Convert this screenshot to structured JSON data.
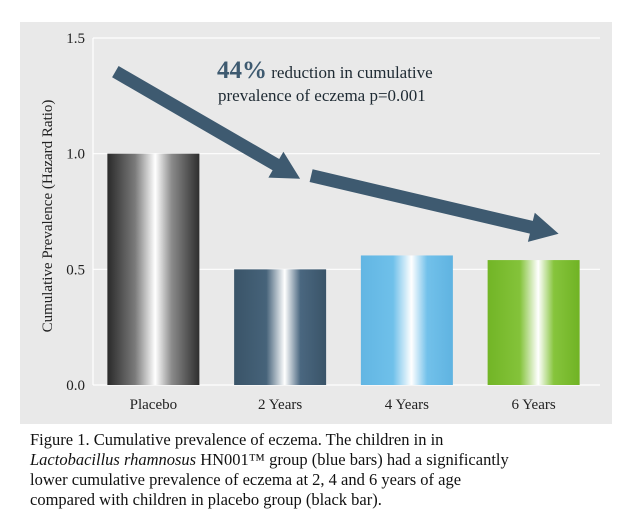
{
  "chart_data": {
    "type": "bar",
    "categories": [
      "Placebo",
      "2 Years",
      "4 Years",
      "6 Years"
    ],
    "values": [
      1.0,
      0.5,
      0.56,
      0.54
    ],
    "ylabel": "Cumulative Prevalence (Hazard Ratio)",
    "xlabel": "",
    "ylim": [
      0,
      1.5
    ],
    "yticks": [
      {
        "value": 0.0,
        "label": "0.0"
      },
      {
        "value": 0.5,
        "label": "0.5"
      },
      {
        "value": 1.0,
        "label": "1.0"
      },
      {
        "value": 1.5,
        "label": "1.5"
      }
    ],
    "grid": true,
    "bar_colors": [
      "#5e5e5e",
      "#3e5a70",
      "#6bbce6",
      "#7cbd2e"
    ],
    "annotation": {
      "highlight": "44%",
      "line1_rest": " reduction in cumulative",
      "line2": "prevalence of eczema p=0.001",
      "color": "#3e5a70"
    }
  },
  "caption": {
    "line1": "Figure 1. Cumulative prevalence of eczema. The children in in",
    "line2_italic": "Lactobacillus rhamnosus",
    "line2_rest": " HN001™ group (blue bars) had a significantly",
    "line3": "lower cumulative prevalence of eczema at 2, 4 and 6 years of age",
    "line4": "compared with children in placebo group (black bar)."
  }
}
